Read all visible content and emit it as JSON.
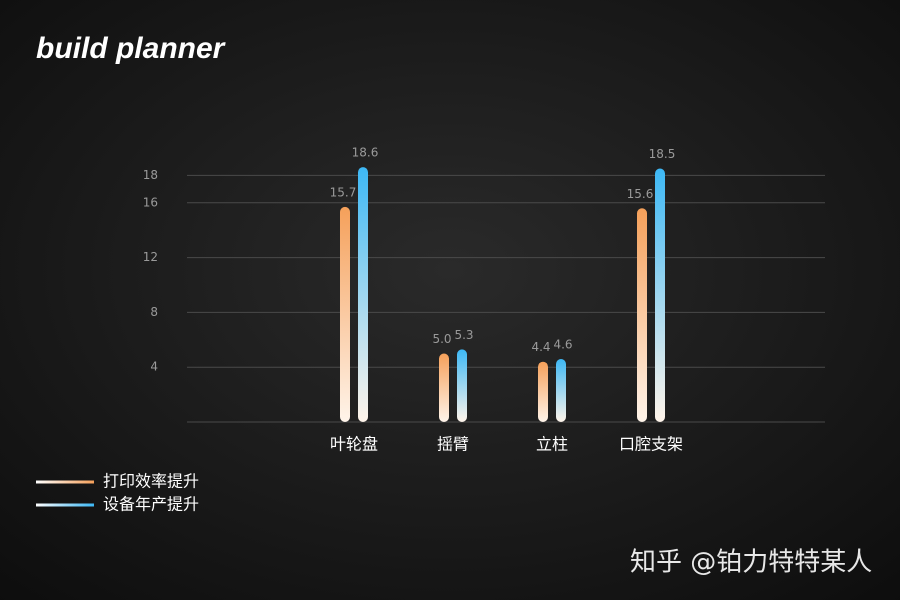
{
  "brand": "build planner",
  "watermark": "知乎 @铂力特特某人",
  "chart_data": {
    "type": "bar",
    "categories": [
      "叶轮盘",
      "摇臂",
      "立柱",
      "口腔支架"
    ],
    "series": [
      {
        "name": "打印效率提升",
        "color": "#f5a05a",
        "values": [
          15.7,
          5.0,
          4.4,
          15.6
        ],
        "value_labels": [
          "15.7",
          "5.0",
          "4.4",
          "15.6"
        ]
      },
      {
        "name": "设备年产提升",
        "color": "#3db8f5",
        "values": [
          18.6,
          5.3,
          4.6,
          18.5
        ]
      }
    ],
    "ylim": [
      0,
      20
    ],
    "yticks": [
      4,
      8,
      12,
      16,
      18
    ],
    "grid": true,
    "legend": "bottom-left"
  }
}
